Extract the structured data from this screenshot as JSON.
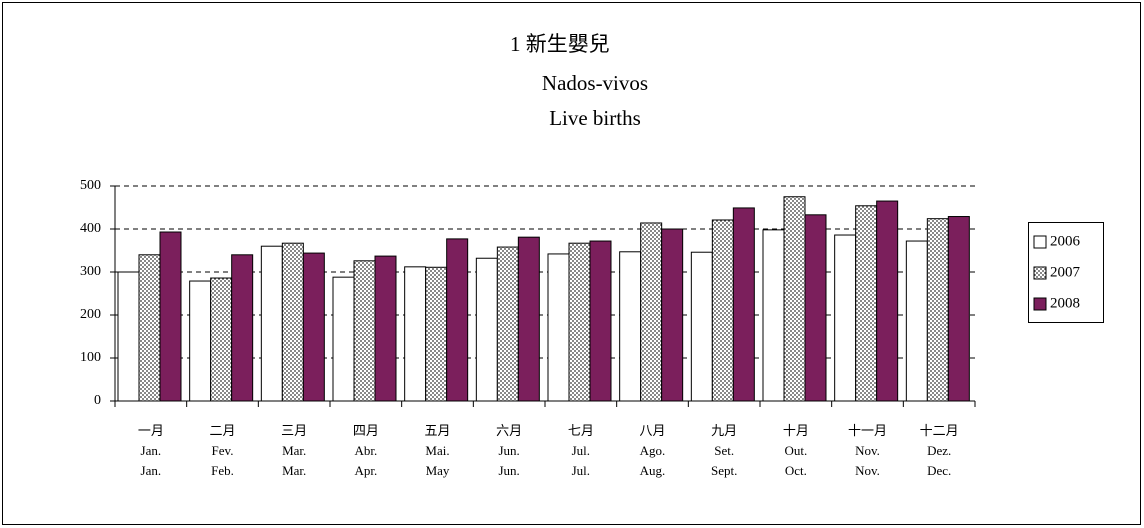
{
  "chart_data": {
    "type": "bar",
    "title": [
      "1 新生嬰兒",
      "Nados-vivos",
      "Live births"
    ],
    "categories": [
      [
        "一月",
        "Jan.",
        "Jan."
      ],
      [
        "二月",
        "Fev.",
        "Feb."
      ],
      [
        "三月",
        "Mar.",
        "Mar."
      ],
      [
        "四月",
        "Abr.",
        "Apr."
      ],
      [
        "五月",
        "Mai.",
        "May"
      ],
      [
        "六月",
        "Jun.",
        "Jun."
      ],
      [
        "七月",
        "Jul.",
        "Jul."
      ],
      [
        "八月",
        "Ago.",
        "Aug."
      ],
      [
        "九月",
        "Set.",
        "Sept."
      ],
      [
        "十月",
        "Out.",
        "Oct."
      ],
      [
        "十一月",
        "Nov.",
        "Nov."
      ],
      [
        "十二月",
        "Dez.",
        "Dec."
      ]
    ],
    "series": [
      {
        "name": "2006",
        "color": "#ffffff",
        "values": [
          300,
          279,
          360,
          288,
          312,
          332,
          342,
          347,
          346,
          398,
          386,
          372
        ]
      },
      {
        "name": "2007",
        "color": "#ffffff",
        "pattern": "dots",
        "values": [
          340,
          286,
          367,
          326,
          311,
          358,
          367,
          414,
          421,
          475,
          454,
          424
        ]
      },
      {
        "name": "2008",
        "color": "#7b1f5c",
        "values": [
          393,
          340,
          344,
          337,
          377,
          381,
          372,
          400,
          449,
          433,
          465,
          429
        ]
      }
    ],
    "ylim": [
      0,
      500
    ],
    "yticks": [
      0,
      100,
      200,
      300,
      400,
      500
    ],
    "grid": true,
    "legend": "right"
  }
}
